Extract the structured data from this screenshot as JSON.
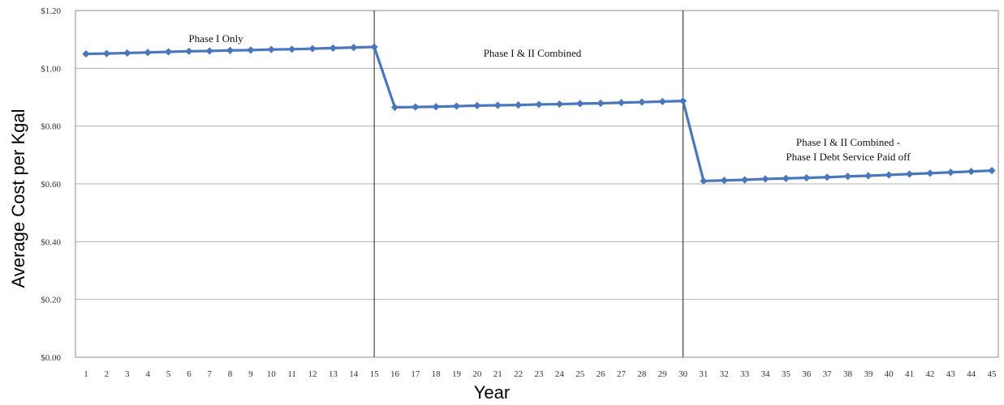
{
  "chart_data": {
    "type": "line",
    "title": "",
    "xlabel": "Year",
    "ylabel": "Average Cost per Kgal",
    "x": [
      1,
      2,
      3,
      4,
      5,
      6,
      7,
      8,
      9,
      10,
      11,
      12,
      13,
      14,
      15,
      16,
      17,
      18,
      19,
      20,
      21,
      22,
      23,
      24,
      25,
      26,
      27,
      28,
      29,
      30,
      31,
      32,
      33,
      34,
      35,
      36,
      37,
      38,
      39,
      40,
      41,
      42,
      43,
      44,
      45
    ],
    "xlim": [
      1,
      45
    ],
    "ylim": [
      0,
      1.2
    ],
    "yticks": [
      0,
      0.2,
      0.4,
      0.6,
      0.8,
      1.0,
      1.2
    ],
    "ytick_labels": [
      "$0.00",
      "$0.20",
      "$0.40",
      "$0.60",
      "$0.80",
      "$1.00",
      "$1.20"
    ],
    "grid": "horizontal",
    "legend": "none",
    "series": [
      {
        "values": [
          1.05,
          1.051,
          1.053,
          1.055,
          1.057,
          1.059,
          1.06,
          1.062,
          1.063,
          1.065,
          1.066,
          1.068,
          1.07,
          1.072,
          1.074,
          0.865,
          0.866,
          0.867,
          0.869,
          0.871,
          0.872,
          0.873,
          0.875,
          0.876,
          0.878,
          0.879,
          0.881,
          0.883,
          0.885,
          0.887,
          0.61,
          0.612,
          0.614,
          0.617,
          0.619,
          0.621,
          0.623,
          0.626,
          0.628,
          0.631,
          0.634,
          0.637,
          0.64,
          0.643,
          0.646
        ],
        "color": "#4a77bb"
      }
    ],
    "vertical_lines_at_x": [
      15,
      30
    ],
    "annotations": [
      {
        "lines": [
          "Phase I Only"
        ]
      },
      {
        "lines": [
          "Phase I & II Combined"
        ]
      },
      {
        "lines": [
          "Phase I & II Combined -",
          "Phase I Debt Service Paid off"
        ]
      }
    ]
  }
}
